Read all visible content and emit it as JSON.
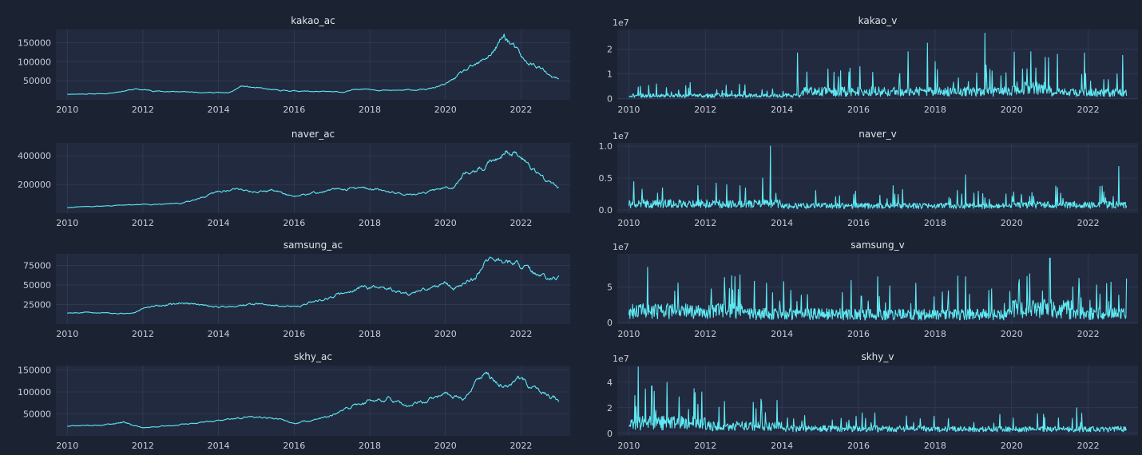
{
  "colors": {
    "figure_bg": "#1b2232",
    "axes_bg": "#222a40",
    "grid": "#39425a",
    "line": "#5ee9f2",
    "text": "#c8ccd8"
  },
  "chart_data": [
    {
      "type": "line",
      "title": "kakao_ac",
      "exponent": "",
      "xlim": [
        2009.7,
        2023.3
      ],
      "x_ticks": [
        2010,
        2012,
        2014,
        2016,
        2018,
        2020,
        2022
      ],
      "x_tick_labels": [
        "2010",
        "2012",
        "2014",
        "2016",
        "2018",
        "2020",
        "2022"
      ],
      "ylim": [
        0,
        185000
      ],
      "y_ticks": [
        50000,
        100000,
        150000
      ],
      "y_tick_labels": [
        "50000",
        "100000",
        "150000"
      ],
      "series": [
        {
          "name": "kakao_ac",
          "x": [
            2010,
            2011,
            2011.8,
            2012.5,
            2013.5,
            2014.3,
            2014.6,
            2015.5,
            2016.5,
            2017.3,
            2017.8,
            2018.5,
            2019.5,
            2020.0,
            2020.5,
            2020.9,
            2021.3,
            2021.55,
            2021.8,
            2022.1,
            2022.5,
            2022.8,
            2023.0
          ],
          "y": [
            15000,
            16000,
            28000,
            22000,
            20000,
            18000,
            36000,
            25000,
            22000,
            20000,
            30000,
            24000,
            27000,
            40000,
            75000,
            95000,
            130000,
            168000,
            140000,
            100000,
            85000,
            58000,
            55000
          ],
          "noise": 0.04,
          "seed": 11
        }
      ]
    },
    {
      "type": "line",
      "title": "kakao_v",
      "exponent": "1e7",
      "xlim": [
        2009.7,
        2023.3
      ],
      "x_ticks": [
        2010,
        2012,
        2014,
        2016,
        2018,
        2020,
        2022
      ],
      "x_tick_labels": [
        "2010",
        "2012",
        "2014",
        "2016",
        "2018",
        "2020",
        "2022"
      ],
      "ylim": [
        -0.05,
        2.8
      ],
      "y_ticks": [
        0,
        1,
        2
      ],
      "y_tick_labels": [
        "0",
        "1",
        "2"
      ],
      "series": [
        {
          "name": "kakao_v",
          "volume": true,
          "segments": [
            [
              2010,
              2014.5,
              0.15
            ],
            [
              2014.5,
              2020,
              0.35
            ],
            [
              2020,
              2021,
              0.5
            ],
            [
              2021,
              2023,
              0.3
            ]
          ],
          "spikes": [
            [
              2010.3,
              0.5
            ],
            [
              2011.6,
              0.65
            ],
            [
              2014.4,
              1.85
            ],
            [
              2015.2,
              1.2
            ],
            [
              2017.3,
              1.9
            ],
            [
              2017.8,
              2.25
            ],
            [
              2018.0,
              1.5
            ],
            [
              2019.3,
              2.65
            ],
            [
              2020.5,
              1.9
            ],
            [
              2021.2,
              1.8
            ],
            [
              2021.9,
              1.85
            ],
            [
              2022.9,
              1.75
            ]
          ],
          "seed": 21
        }
      ]
    },
    {
      "type": "line",
      "title": "naver_ac",
      "exponent": "",
      "xlim": [
        2009.7,
        2023.3
      ],
      "x_ticks": [
        2010,
        2012,
        2014,
        2016,
        2018,
        2020,
        2022
      ],
      "x_tick_labels": [
        "2010",
        "2012",
        "2014",
        "2016",
        "2018",
        "2020",
        "2022"
      ],
      "ylim": [
        0,
        490000
      ],
      "y_ticks": [
        200000,
        400000
      ],
      "y_tick_labels": [
        "200000",
        "400000"
      ],
      "series": [
        {
          "name": "naver_ac",
          "x": [
            2010,
            2011,
            2012,
            2013,
            2013.5,
            2014,
            2014.5,
            2015,
            2015.5,
            2016,
            2016.5,
            2017,
            2017.5,
            2018,
            2018.5,
            2019,
            2019.5,
            2020,
            2020.2,
            2020.6,
            2021,
            2021.3,
            2021.6,
            2021.8,
            2022.2,
            2022.6,
            2023.0
          ],
          "y": [
            40000,
            50000,
            60000,
            70000,
            100000,
            150000,
            170000,
            150000,
            160000,
            110000,
            140000,
            160000,
            175000,
            170000,
            150000,
            130000,
            140000,
            190000,
            180000,
            300000,
            310000,
            380000,
            440000,
            420000,
            350000,
            240000,
            180000
          ],
          "noise": 0.035,
          "seed": 31
        }
      ]
    },
    {
      "type": "line",
      "title": "naver_v",
      "exponent": "1e7",
      "xlim": [
        2009.7,
        2023.3
      ],
      "x_ticks": [
        2010,
        2012,
        2014,
        2016,
        2018,
        2020,
        2022
      ],
      "x_tick_labels": [
        "2010",
        "2012",
        "2014",
        "2016",
        "2018",
        "2020",
        "2022"
      ],
      "ylim": [
        -0.05,
        1.05
      ],
      "y_ticks": [
        0,
        0.5,
        1
      ],
      "y_tick_labels": [
        "0.0",
        "0.5",
        "1.0"
      ],
      "series": [
        {
          "name": "naver_v",
          "volume": true,
          "segments": [
            [
              2010,
              2014,
              0.12
            ],
            [
              2014,
              2020,
              0.08
            ],
            [
              2020,
              2023,
              0.1
            ]
          ],
          "spikes": [
            [
              2011.8,
              0.38
            ],
            [
              2013.5,
              0.5
            ],
            [
              2013.7,
              1.0
            ],
            [
              2016.9,
              0.38
            ],
            [
              2018.8,
              0.55
            ],
            [
              2022.8,
              0.68
            ]
          ],
          "seed": 41
        }
      ]
    },
    {
      "type": "line",
      "title": "samsung_ac",
      "exponent": "",
      "xlim": [
        2009.7,
        2023.3
      ],
      "x_ticks": [
        2010,
        2012,
        2014,
        2016,
        2018,
        2020,
        2022
      ],
      "x_tick_labels": [
        "2010",
        "2012",
        "2014",
        "2016",
        "2018",
        "2020",
        "2022"
      ],
      "ylim": [
        0,
        90000
      ],
      "y_ticks": [
        25000,
        50000,
        75000
      ],
      "y_tick_labels": [
        "25000",
        "50000",
        "75000"
      ],
      "series": [
        {
          "name": "samsung_ac",
          "x": [
            2010,
            2011,
            2011.6,
            2012,
            2013,
            2014,
            2015,
            2016,
            2017,
            2017.8,
            2018.5,
            2019,
            2019.5,
            2020,
            2020.2,
            2020.8,
            2021.1,
            2021.5,
            2022,
            2022.5,
            2023.0
          ],
          "y": [
            14000,
            15000,
            13000,
            20000,
            27000,
            22000,
            26000,
            22000,
            35000,
            48000,
            45000,
            38000,
            44000,
            55000,
            45000,
            60000,
            85000,
            80000,
            75000,
            60000,
            57000
          ],
          "noise": 0.035,
          "seed": 51
        }
      ]
    },
    {
      "type": "line",
      "title": "samsung_v",
      "exponent": "1e7",
      "xlim": [
        2009.7,
        2023.3
      ],
      "x_ticks": [
        2010,
        2012,
        2014,
        2016,
        2018,
        2020,
        2022
      ],
      "x_tick_labels": [
        "2010",
        "2012",
        "2014",
        "2016",
        "2018",
        "2020",
        "2022"
      ],
      "ylim": [
        -0.2,
        9.6
      ],
      "y_ticks": [
        0,
        5
      ],
      "y_tick_labels": [
        "0",
        "5"
      ],
      "series": [
        {
          "name": "samsung_v",
          "volume": true,
          "segments": [
            [
              2010,
              2013,
              2.0
            ],
            [
              2013,
              2016,
              1.5
            ],
            [
              2016,
              2020,
              1.4
            ],
            [
              2020,
              2021.5,
              2.4
            ],
            [
              2021.5,
              2023,
              1.6
            ]
          ],
          "spikes": [
            [
              2012.5,
              6.3
            ],
            [
              2013.6,
              5.5
            ],
            [
              2016.5,
              6.4
            ],
            [
              2017.5,
              5.5
            ],
            [
              2018.6,
              6.5
            ],
            [
              2018.8,
              6.4
            ],
            [
              2020.2,
              6.0
            ],
            [
              2021.0,
              9.0
            ],
            [
              2021.6,
              5.0
            ]
          ],
          "seed": 61
        }
      ]
    },
    {
      "type": "line",
      "title": "skhy_ac",
      "exponent": "",
      "xlim": [
        2009.7,
        2023.3
      ],
      "x_ticks": [
        2010,
        2012,
        2014,
        2016,
        2018,
        2020,
        2022
      ],
      "x_tick_labels": [
        "2010",
        "2012",
        "2014",
        "2016",
        "2018",
        "2020",
        "2022"
      ],
      "ylim": [
        0,
        160000
      ],
      "y_ticks": [
        50000,
        100000,
        150000
      ],
      "y_tick_labels": [
        "50000",
        "100000",
        "150000"
      ],
      "series": [
        {
          "name": "skhy_ac",
          "x": [
            2010,
            2011,
            2011.5,
            2012,
            2013,
            2014,
            2014.5,
            2015,
            2015.5,
            2016,
            2017,
            2017.6,
            2018,
            2018.5,
            2019,
            2019.5,
            2020,
            2020.5,
            2021.0,
            2021.3,
            2021.6,
            2021.9,
            2022.2,
            2022.5,
            2023.0
          ],
          "y": [
            22000,
            25000,
            32000,
            18000,
            25000,
            35000,
            40000,
            45000,
            40000,
            28000,
            45000,
            70000,
            80000,
            85000,
            65000,
            80000,
            95000,
            85000,
            145000,
            125000,
            110000,
            130000,
            115000,
            100000,
            80000
          ],
          "noise": 0.035,
          "seed": 71
        }
      ]
    },
    {
      "type": "line",
      "title": "skhy_v",
      "exponent": "1e7",
      "xlim": [
        2009.7,
        2023.3
      ],
      "x_ticks": [
        2010,
        2012,
        2014,
        2016,
        2018,
        2020,
        2022
      ],
      "x_tick_labels": [
        "2010",
        "2012",
        "2014",
        "2016",
        "2018",
        "2020",
        "2022"
      ],
      "ylim": [
        -0.2,
        5.3
      ],
      "y_ticks": [
        0,
        2,
        4
      ],
      "y_tick_labels": [
        "0",
        "2",
        "4"
      ],
      "series": [
        {
          "name": "skhy_v",
          "volume": true,
          "segments": [
            [
              2010,
              2012,
              1.0
            ],
            [
              2012,
              2014,
              0.7
            ],
            [
              2014,
              2018,
              0.45
            ],
            [
              2018,
              2023,
              0.4
            ]
          ],
          "spikes": [
            [
              2010.25,
              5.2
            ],
            [
              2010.6,
              3.7
            ],
            [
              2011.7,
              3.5
            ],
            [
              2012.5,
              2.5
            ],
            [
              2021.7,
              2.0
            ]
          ],
          "seed": 81
        }
      ]
    }
  ]
}
